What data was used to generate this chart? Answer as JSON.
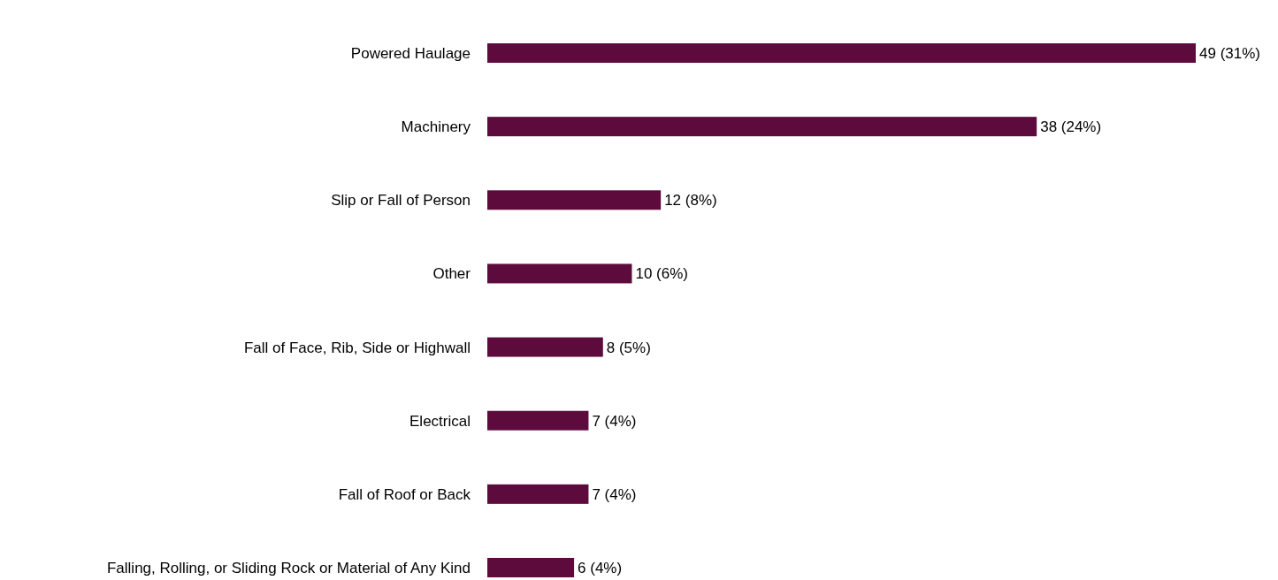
{
  "chart_data": {
    "type": "bar",
    "orientation": "horizontal",
    "categories": [
      "Powered Haulage",
      "Machinery",
      "Slip or Fall of Person",
      "Other",
      "Fall of Face, Rib, Side or Highwall",
      "Electrical",
      "Fall of Roof or Back",
      "Falling, Rolling, or Sliding Rock or Material of Any Kind"
    ],
    "values": [
      49,
      38,
      12,
      10,
      8,
      7,
      7,
      6
    ],
    "value_labels": [
      "49 (31%)",
      "38 (24%)",
      "12 (8%)",
      "10 (6%)",
      "8 (5%)",
      "7 (4%)",
      "7 (4%)",
      "6 (4%)"
    ],
    "color": "#5c0b3c"
  }
}
